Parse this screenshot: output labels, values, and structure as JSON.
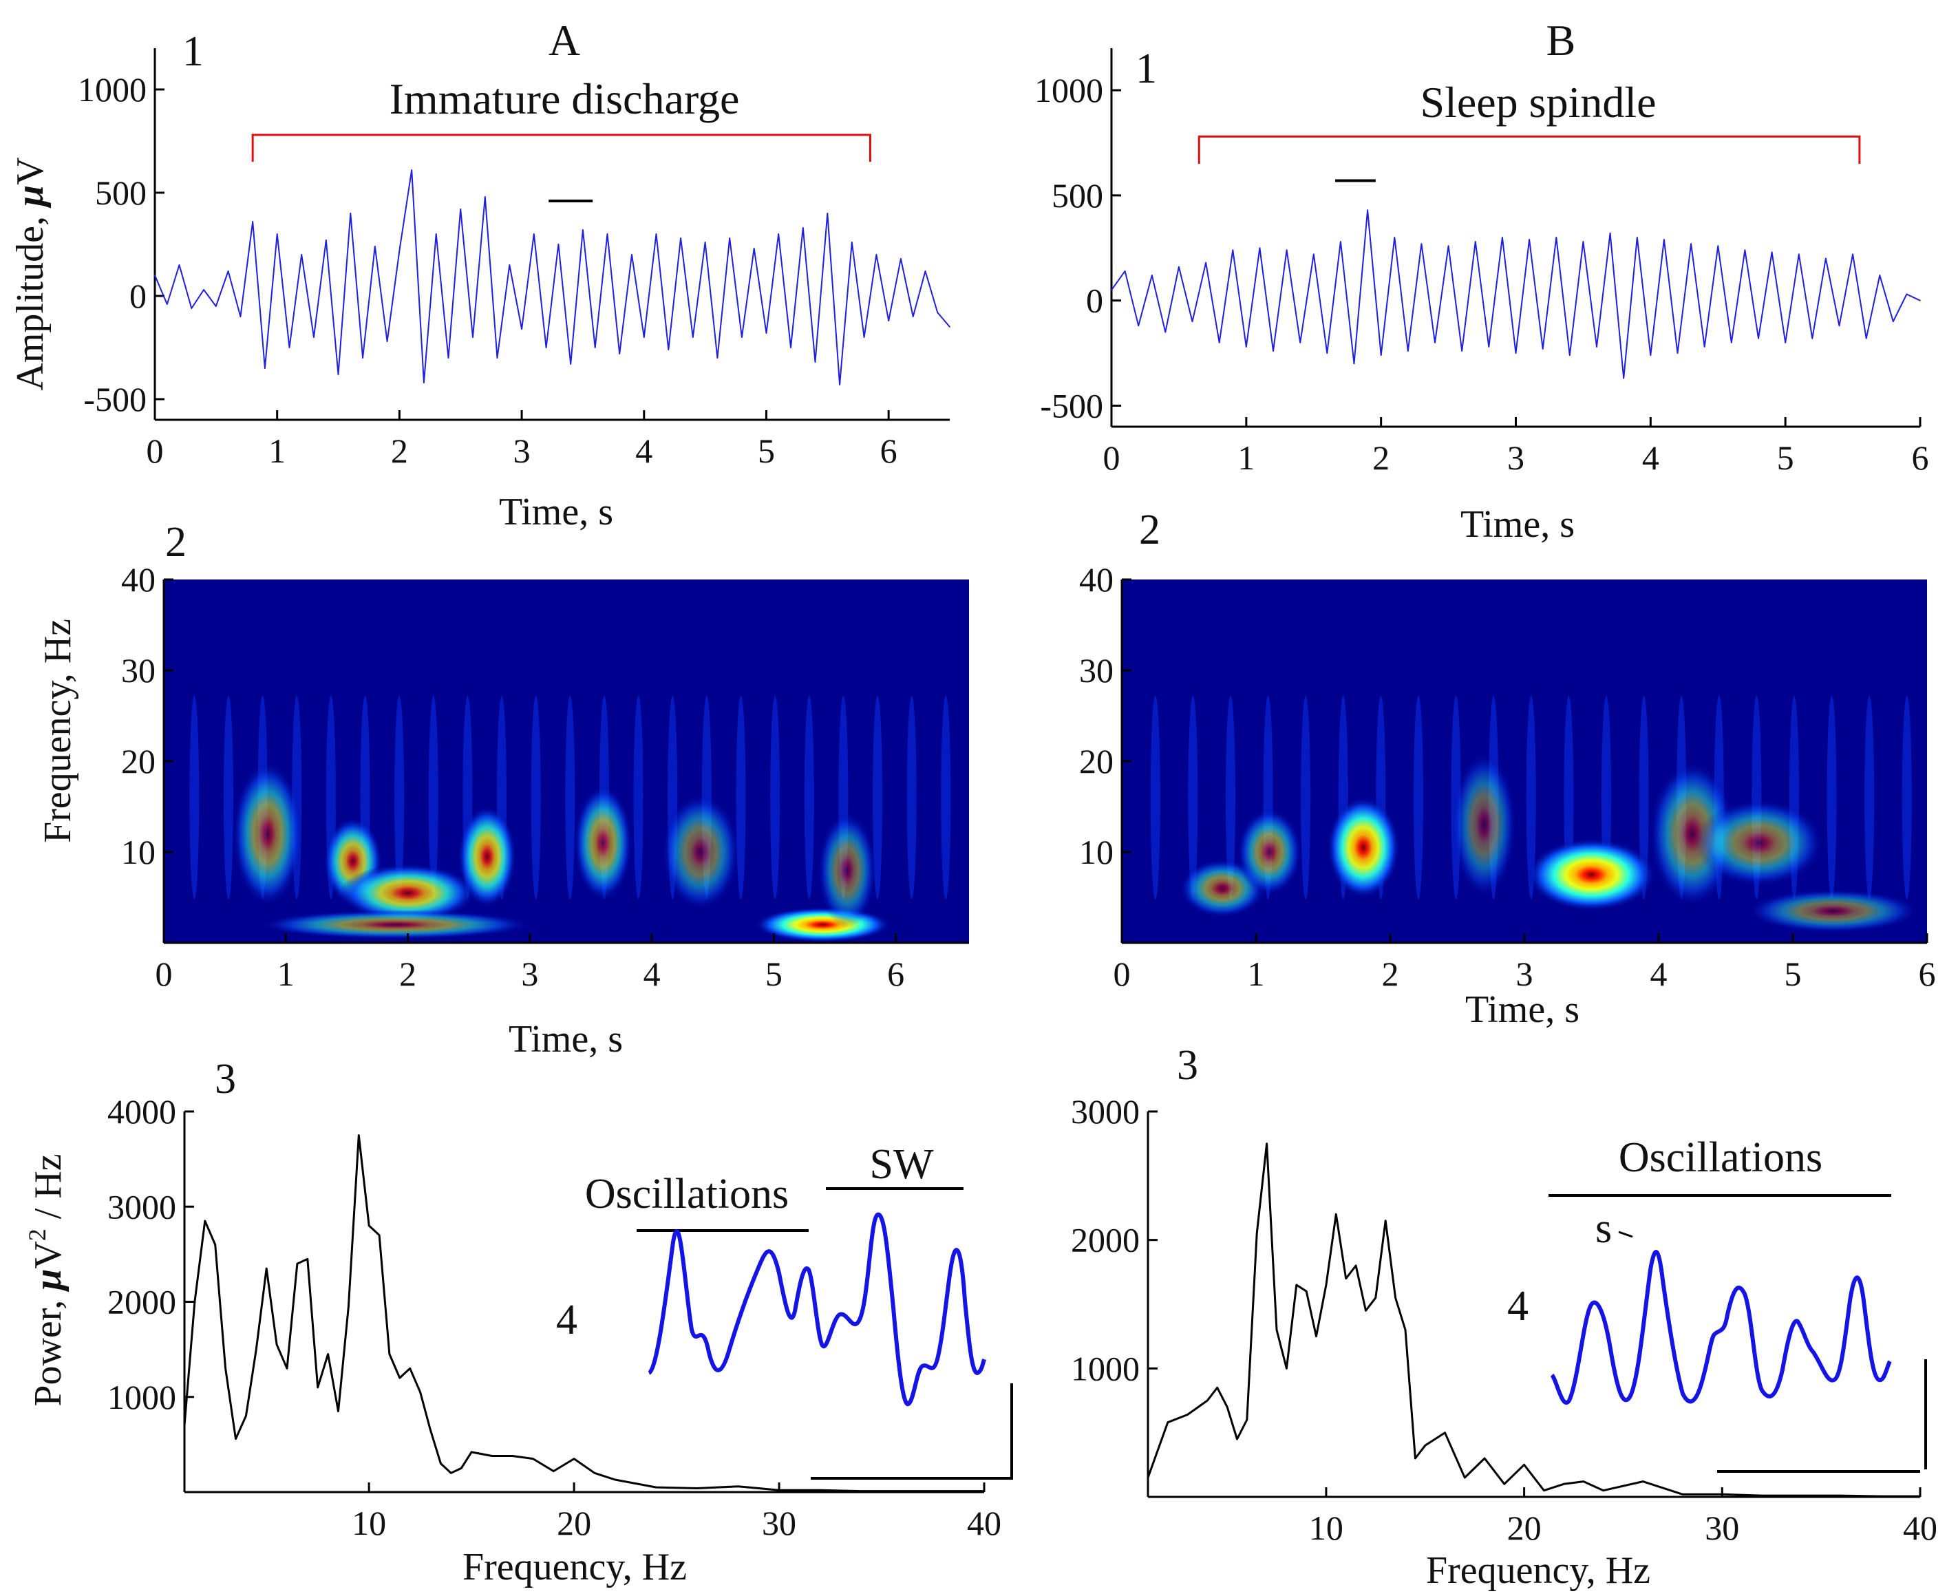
{
  "colors": {
    "trace": "#1f1fe0",
    "bracket": "#e01010",
    "axis": "#000000",
    "inset": "#1414e6",
    "scalogram_bg": "#00008f"
  },
  "columns": {
    "A": {
      "letter": "A",
      "title": "Immature discharge"
    },
    "B": {
      "letter": "B",
      "title": "Sleep spindle"
    }
  },
  "panel_labels": {
    "A1": "1",
    "A2": "2",
    "A3": "3",
    "A4": "4",
    "B1": "1",
    "B2": "2",
    "B3": "3",
    "B4": "4"
  },
  "labels": {
    "amplitude_ylabel_pre": "Amplitude, ",
    "amplitude_ylabel_mu": "μ",
    "amplitude_ylabel_unit": "V",
    "time_xlabel": "Time, s",
    "frequency_ylabel": "Frequency, Hz",
    "frequency_xlabel": "Frequency, Hz",
    "power_ylabel_pre": "Power, ",
    "power_ylabel_mu": "μ",
    "power_ylabel_v": "V",
    "power_ylabel_sup": "2",
    "power_ylabel_post": " / Hz"
  },
  "insets": {
    "A": {
      "left_label": "Oscillations",
      "right_label": "SW"
    },
    "B": {
      "top_label": "Oscillations",
      "s_label": "s"
    }
  },
  "chart_data": [
    {
      "id": "A1",
      "type": "line",
      "title": "Immature discharge",
      "xlabel": "Time, s",
      "ylabel": "Amplitude, μV",
      "xlim": [
        0,
        6.5
      ],
      "ylim": [
        -600,
        1200
      ],
      "xticks": [
        0,
        1,
        2,
        3,
        4,
        5,
        6
      ],
      "yticks": [
        -500,
        0,
        500,
        1000
      ],
      "ytick_labels": [
        "-500",
        "0",
        "500",
        "1000"
      ],
      "bracket": {
        "start": 0.8,
        "end": 5.85,
        "level": 780,
        "drop": 130
      },
      "scale_bar": {
        "start": 3.22,
        "end": 3.58,
        "level": 460
      },
      "series": [
        {
          "name": "EEG",
          "x": [
            0,
            0.1,
            0.2,
            0.3,
            0.4,
            0.5,
            0.6,
            0.7,
            0.8,
            0.9,
            1.0,
            1.1,
            1.2,
            1.3,
            1.4,
            1.5,
            1.6,
            1.7,
            1.8,
            1.9,
            2.0,
            2.1,
            2.2,
            2.3,
            2.4,
            2.5,
            2.6,
            2.7,
            2.8,
            2.9,
            3.0,
            3.1,
            3.2,
            3.3,
            3.4,
            3.5,
            3.6,
            3.7,
            3.8,
            3.9,
            4.0,
            4.1,
            4.2,
            4.3,
            4.4,
            4.5,
            4.6,
            4.7,
            4.8,
            4.9,
            5.0,
            5.1,
            5.2,
            5.3,
            5.4,
            5.5,
            5.6,
            5.7,
            5.8,
            5.9,
            6.0,
            6.1,
            6.2,
            6.3,
            6.4,
            6.5
          ],
          "y": [
            100,
            -40,
            150,
            -60,
            30,
            -50,
            120,
            -100,
            360,
            -350,
            300,
            -250,
            200,
            -200,
            270,
            -380,
            400,
            -300,
            240,
            -220,
            220,
            610,
            -420,
            300,
            -300,
            420,
            -200,
            480,
            -300,
            150,
            -160,
            300,
            -250,
            250,
            -330,
            320,
            -250,
            300,
            -280,
            200,
            -200,
            300,
            -260,
            280,
            -200,
            260,
            -300,
            280,
            -200,
            230,
            -180,
            300,
            -250,
            330,
            -320,
            400,
            -430,
            260,
            -200,
            200,
            -120,
            180,
            -100,
            120,
            -80,
            -150
          ]
        }
      ]
    },
    {
      "id": "B1",
      "type": "line",
      "title": "Sleep spindle",
      "xlabel": "Time, s",
      "ylabel": "",
      "xlim": [
        0,
        6
      ],
      "ylim": [
        -600,
        1200
      ],
      "xticks": [
        0,
        1,
        2,
        3,
        4,
        5,
        6
      ],
      "yticks": [
        -500,
        0,
        500,
        1000
      ],
      "ytick_labels": [
        "-500",
        "0",
        "500",
        "1000"
      ],
      "bracket": {
        "start": 0.65,
        "end": 5.55,
        "level": 780,
        "drop": 130
      },
      "scale_bar": {
        "start": 1.66,
        "end": 1.96,
        "level": 570
      },
      "series": [
        {
          "name": "EEG",
          "x": [
            0,
            0.1,
            0.2,
            0.3,
            0.4,
            0.5,
            0.6,
            0.7,
            0.8,
            0.9,
            1.0,
            1.1,
            1.2,
            1.3,
            1.4,
            1.5,
            1.6,
            1.7,
            1.8,
            1.9,
            2.0,
            2.1,
            2.2,
            2.3,
            2.4,
            2.5,
            2.6,
            2.7,
            2.8,
            2.9,
            3.0,
            3.1,
            3.2,
            3.3,
            3.4,
            3.5,
            3.6,
            3.7,
            3.8,
            3.9,
            4.0,
            4.1,
            4.2,
            4.3,
            4.4,
            4.5,
            4.6,
            4.7,
            4.8,
            4.9,
            5.0,
            5.1,
            5.2,
            5.3,
            5.4,
            5.5,
            5.6,
            5.7,
            5.8,
            5.9,
            6.0
          ],
          "y": [
            50,
            140,
            -120,
            120,
            -150,
            160,
            -100,
            180,
            -200,
            240,
            -220,
            250,
            -240,
            240,
            -200,
            220,
            -250,
            280,
            -300,
            430,
            -260,
            300,
            -240,
            270,
            -200,
            260,
            -240,
            280,
            -220,
            300,
            -250,
            290,
            -230,
            300,
            -260,
            280,
            -220,
            320,
            -370,
            300,
            -260,
            290,
            -250,
            270,
            -220,
            260,
            -200,
            240,
            -180,
            230,
            -200,
            220,
            -180,
            200,
            -120,
            220,
            -180,
            120,
            -100,
            30,
            0
          ]
        }
      ]
    },
    {
      "id": "A2",
      "type": "heatmap",
      "xlabel": "Time, s",
      "ylabel": "Frequency, Hz",
      "xlim": [
        0,
        6.6
      ],
      "ylim": [
        0,
        40
      ],
      "xticks": [
        0,
        1,
        2,
        3,
        4,
        5,
        6
      ],
      "yticks": [
        10,
        20,
        30,
        40
      ],
      "blobs": [
        {
          "t": 0.85,
          "f": 12,
          "w": 0.18,
          "h": 5,
          "a": 0.55
        },
        {
          "t": 1.55,
          "f": 9,
          "w": 0.15,
          "h": 3,
          "a": 0.75
        },
        {
          "t": 2.0,
          "f": 5.5,
          "w": 0.35,
          "h": 2,
          "a": 0.8
        },
        {
          "t": 2.65,
          "f": 9.5,
          "w": 0.15,
          "h": 3.5,
          "a": 0.8
        },
        {
          "t": 3.6,
          "f": 11,
          "w": 0.15,
          "h": 4,
          "a": 0.6
        },
        {
          "t": 4.4,
          "f": 10,
          "w": 0.2,
          "h": 4,
          "a": 0.45
        },
        {
          "t": 5.4,
          "f": 2,
          "w": 0.35,
          "h": 1.2,
          "a": 1.0
        },
        {
          "t": 5.6,
          "f": 8,
          "w": 0.15,
          "h": 4,
          "a": 0.45
        },
        {
          "t": 1.9,
          "f": 2,
          "w": 0.7,
          "h": 1.0,
          "a": 0.55
        }
      ]
    },
    {
      "id": "B2",
      "type": "heatmap",
      "xlabel": "Time, s",
      "ylabel": "",
      "xlim": [
        0,
        6
      ],
      "ylim": [
        0,
        40
      ],
      "xticks": [
        0,
        1,
        2,
        3,
        4,
        5,
        6
      ],
      "yticks": [
        10,
        20,
        30,
        40
      ],
      "blobs": [
        {
          "t": 0.75,
          "f": 6,
          "w": 0.2,
          "h": 2,
          "a": 0.55
        },
        {
          "t": 1.1,
          "f": 10,
          "w": 0.15,
          "h": 3,
          "a": 0.55
        },
        {
          "t": 1.8,
          "f": 10.5,
          "w": 0.17,
          "h": 3.5,
          "a": 0.95
        },
        {
          "t": 3.5,
          "f": 7.5,
          "w": 0.3,
          "h": 2.5,
          "a": 1.0
        },
        {
          "t": 4.25,
          "f": 12,
          "w": 0.2,
          "h": 5,
          "a": 0.5
        },
        {
          "t": 4.75,
          "f": 11,
          "w": 0.3,
          "h": 3,
          "a": 0.5
        },
        {
          "t": 5.3,
          "f": 3.5,
          "w": 0.4,
          "h": 1.5,
          "a": 0.45
        },
        {
          "t": 2.7,
          "f": 13,
          "w": 0.15,
          "h": 5,
          "a": 0.4
        }
      ]
    },
    {
      "id": "A3",
      "type": "line",
      "xlabel": "Frequency, Hz",
      "ylabel": "Power, μV²/Hz",
      "xlim": [
        1,
        40
      ],
      "ylim": [
        0,
        4000
      ],
      "xticks": [
        10,
        20,
        30,
        40
      ],
      "xtick_labels": [
        "10",
        "20",
        "30",
        "40"
      ],
      "yticks": [
        1000,
        2000,
        3000,
        4000
      ],
      "series": [
        {
          "name": "PSD",
          "x": [
            1,
            1.5,
            2,
            2.5,
            3,
            3.5,
            4,
            4.5,
            5,
            5.5,
            6,
            6.5,
            7,
            7.5,
            8,
            8.5,
            9,
            9.5,
            10,
            10.5,
            11,
            11.5,
            12,
            12.5,
            13,
            13.5,
            14,
            14.5,
            15,
            16,
            17,
            18,
            19,
            20,
            21,
            22,
            24,
            26,
            28,
            30,
            32,
            34,
            36,
            38,
            40
          ],
          "y": [
            700,
            2000,
            2850,
            2600,
            1300,
            560,
            800,
            1500,
            2350,
            1550,
            1300,
            2400,
            2450,
            1100,
            1450,
            850,
            1950,
            3750,
            2800,
            2700,
            1450,
            1200,
            1300,
            1050,
            650,
            300,
            200,
            250,
            420,
            380,
            380,
            350,
            220,
            350,
            200,
            130,
            50,
            40,
            60,
            20,
            20,
            10,
            10,
            10,
            10
          ]
        }
      ]
    },
    {
      "id": "B3",
      "type": "line",
      "xlabel": "Frequency, Hz",
      "ylabel": "",
      "xlim": [
        1,
        40
      ],
      "ylim": [
        0,
        3000
      ],
      "xticks": [
        10,
        20,
        30,
        40
      ],
      "xtick_labels": [
        "10",
        "20",
        "30",
        "40"
      ],
      "yticks": [
        1000,
        2000,
        3000
      ],
      "series": [
        {
          "name": "PSD",
          "x": [
            1,
            2,
            3,
            4,
            4.5,
            5,
            5.5,
            6,
            6.5,
            7,
            7.5,
            8,
            8.5,
            9,
            9.5,
            10,
            10.5,
            11,
            11.5,
            12,
            12.5,
            13,
            13.5,
            14,
            14.5,
            15,
            16,
            17,
            18,
            19,
            20,
            21,
            22,
            23,
            24,
            26,
            28,
            30,
            32,
            34,
            36,
            38,
            40
          ],
          "y": [
            150,
            580,
            640,
            750,
            850,
            700,
            450,
            600,
            2050,
            2750,
            1300,
            1000,
            1650,
            1600,
            1250,
            1650,
            2200,
            1700,
            1800,
            1450,
            1550,
            2150,
            1550,
            1300,
            300,
            400,
            500,
            150,
            300,
            100,
            250,
            50,
            100,
            120,
            50,
            120,
            20,
            20,
            10,
            10,
            10,
            5,
            5
          ]
        }
      ]
    }
  ]
}
